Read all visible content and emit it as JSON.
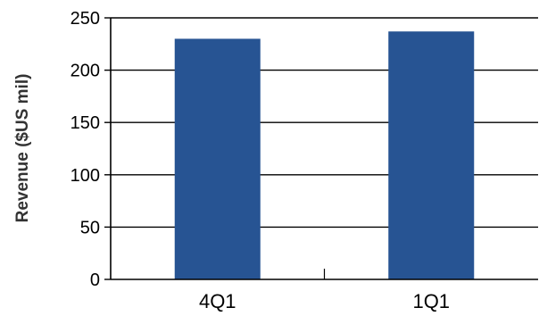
{
  "chart_data": {
    "type": "bar",
    "title": "",
    "xlabel": "",
    "ylabel": "Revenue ($US mil)",
    "categories": [
      "4Q1",
      "1Q1"
    ],
    "values": [
      230,
      237
    ],
    "ylim": [
      0,
      250
    ],
    "yticks": [
      0,
      50,
      100,
      150,
      200,
      250
    ],
    "ytick_labels": [
      "0",
      "50",
      "100",
      "150",
      "200",
      "250"
    ],
    "grid": "horizontal",
    "legend": "none",
    "bar_color": "#275493",
    "grid_color": "#000000",
    "axis_color": "#000000"
  }
}
